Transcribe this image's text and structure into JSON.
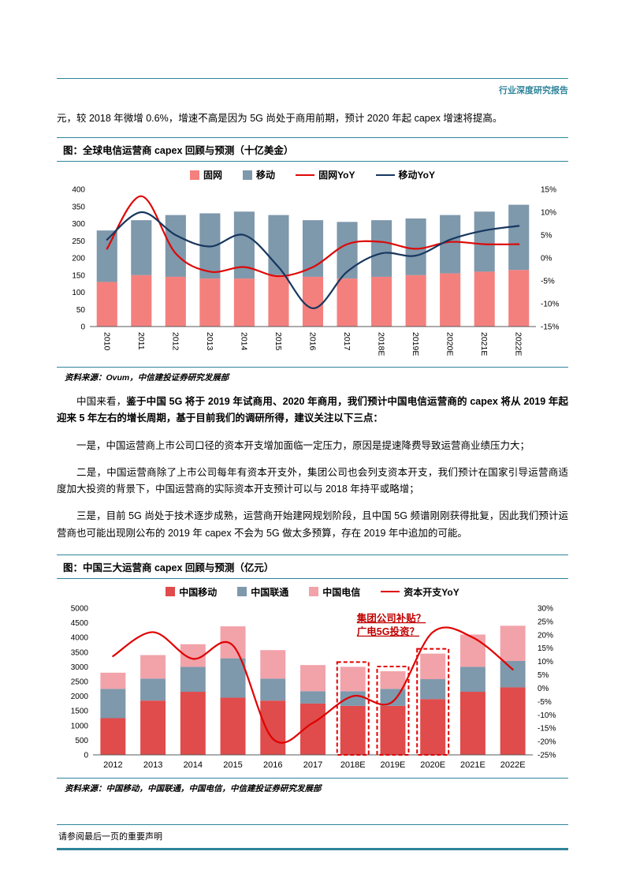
{
  "page": {
    "header_label": "行业深度研究报告",
    "footer_note": "请参阅最后一页的重要声明"
  },
  "intro_paragraph": "元，较 2018 年微增 0.6%，增速不高是因为 5G 尚处于商用前期，预计 2020 年起 capex 增速将提高。",
  "section1": {
    "title": "图：全球电信运营商 capex 回顾与预测（十亿美金）",
    "source": "资料来源：Ovum，中信建投证券研究发展部"
  },
  "paragraphs": {
    "p1_normal": "中国来看，",
    "p1_bold": "鉴于中国 5G 将于 2019 年试商用、2020 年商用，我们预计中国电信运营商的 capex 将从 2019 年起迎来 5 年左右的增长周期，基于目前我们的调研所得，建议关注以下三点：",
    "p2": "一是，中国运营商上市公司口径的资本开支增加面临一定压力，原因是提速降费导致运营商业绩压力大；",
    "p3": "二是，中国运营商除了上市公司每年有资本开支外，集团公司也会列支资本开支，我们预计在国家引导运营商适度加大投资的背景下，中国运营商的实际资本开支预计可以与 2018 年持平或略增；",
    "p4": "三是，目前 5G 尚处于技术逐步成熟，运营商开始建网规划阶段，且中国 5G 频谱刚刚获得批复，因此我们预计运营商也可能出现刚公布的 2019 年 capex 不会为 5G 做太多预算，存在 2019 年中追加的可能。"
  },
  "section2": {
    "title": "图：中国三大运营商 capex 回顾与预测（亿元）",
    "source": "资料来源：中国移动，中国联通，中国电信，中信建投证券研究发展部"
  },
  "colors": {
    "accent_teal": "#2F849B",
    "fixed_pink": "#F4807E",
    "mobile_slate": "#7E98AC",
    "yoy_red": "#DD0806",
    "yoy_navy": "#17375E",
    "cm_red": "#E04B4B",
    "cu_slate": "#7E98AC",
    "ct_pink": "#F2A2A9",
    "annotation_red": "#C00000"
  },
  "chart_data": [
    {
      "type": "bar",
      "subtype": "stacked-bar-with-yoy-lines",
      "title": "全球电信运营商 capex 回顾与预测（十亿美金）",
      "categories": [
        "2010",
        "2011",
        "2012",
        "2013",
        "2014",
        "2015",
        "2016",
        "2017",
        "2018E",
        "2019E",
        "2020E",
        "2021E",
        "2022E"
      ],
      "bar_series": [
        {
          "name": "固网",
          "color": "#F4807E",
          "values": [
            130,
            150,
            145,
            140,
            140,
            150,
            145,
            140,
            145,
            150,
            155,
            160,
            165
          ]
        },
        {
          "name": "移动",
          "color": "#7E98AC",
          "values": [
            150,
            160,
            180,
            190,
            195,
            175,
            165,
            165,
            165,
            165,
            170,
            175,
            190
          ]
        }
      ],
      "line_series": [
        {
          "name": "固网YoY",
          "color": "#DD0806",
          "values": [
            2,
            13.5,
            1,
            -3,
            -2,
            -4,
            -2,
            3,
            3.5,
            2,
            3.5,
            3,
            3
          ]
        },
        {
          "name": "移动YoY",
          "color": "#17375E",
          "values": [
            4,
            10,
            5,
            2.5,
            5,
            -2,
            -11,
            -3,
            1,
            0.5,
            4,
            6,
            7
          ]
        }
      ],
      "left_axis": {
        "min": 0,
        "max": 400,
        "step": 50
      },
      "right_axis": {
        "min": -15,
        "max": 15,
        "step": 5,
        "format": "percent"
      },
      "grid": false,
      "legend_position": "top-center"
    },
    {
      "type": "bar",
      "subtype": "stacked-bar-with-yoy-line",
      "title": "中国三大运营商 capex 回顾与预测（亿元）",
      "categories": [
        "2012",
        "2013",
        "2014",
        "2015",
        "2016",
        "2017",
        "2018E",
        "2019E",
        "2020E",
        "2021E",
        "2022E"
      ],
      "bar_series": [
        {
          "name": "中国移动",
          "color": "#E04B4B",
          "values": [
            1250,
            1850,
            2150,
            1950,
            1850,
            1750,
            1670,
            1670,
            1900,
            2150,
            2300
          ]
        },
        {
          "name": "中国联通",
          "color": "#7E98AC",
          "values": [
            1000,
            750,
            850,
            1340,
            750,
            420,
            500,
            580,
            680,
            850,
            900
          ]
        },
        {
          "name": "中国电信",
          "color": "#F2A2A9",
          "values": [
            550,
            800,
            770,
            1090,
            970,
            890,
            830,
            600,
            870,
            1100,
            1200
          ]
        }
      ],
      "line_series": [
        {
          "name": "资本开支YoY",
          "color": "#E00000",
          "values": [
            12,
            21,
            11,
            16,
            -19,
            -13,
            -3,
            -5,
            21,
            19,
            7
          ]
        }
      ],
      "left_axis": {
        "min": 0,
        "max": 5000,
        "step": 500
      },
      "right_axis": {
        "min": -25,
        "max": 30,
        "step": 5,
        "format": "percent"
      },
      "grid": false,
      "legend_position": "top-center",
      "highlight_boxes": [
        "2018E",
        "2019E",
        "2020E"
      ],
      "highlight_color": "#E00000",
      "annotations": [
        {
          "text": "集团公司补贴？",
          "x_index": 6.1,
          "y_value": 25,
          "color": "#C00000"
        },
        {
          "text": "广电5G投资？",
          "x_index": 6.1,
          "y_value": 20,
          "color": "#C00000"
        }
      ]
    }
  ]
}
